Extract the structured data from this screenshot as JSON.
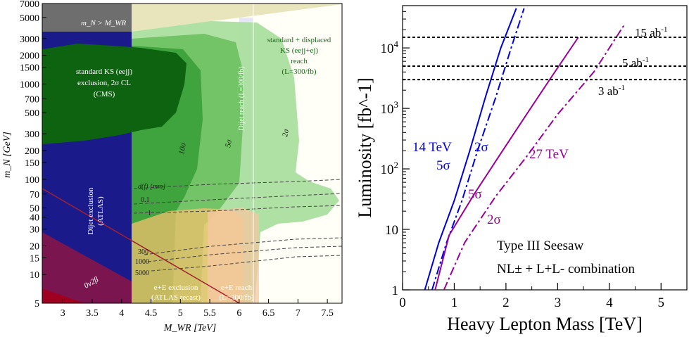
{
  "left_panel": {
    "xlabel": "M_WR [TeV]",
    "ylabel": "m_N [GeV]",
    "x_ticks": [
      "3",
      "3.5",
      "4",
      "4.5",
      "5",
      "5.5",
      "6",
      "6.5",
      "7",
      "7.5"
    ],
    "y_ticks": [
      "5",
      "10",
      "15",
      "20",
      "30",
      "40",
      "50",
      "70",
      "100",
      "150",
      "200",
      "300",
      "500",
      "700",
      "1000",
      "1500",
      "2000",
      "3000",
      "5000",
      "7000"
    ],
    "labels": {
      "mn_gt_mwr": "m_N > M_WR",
      "cms_line1": "standard KS (eejj)",
      "cms_line2": "exclusion, 2σ CL",
      "cms_line3": "(CMS)",
      "dijet_excl": "Dijet exclusion",
      "dijet_excl2": "(ATLAS)",
      "dijet_reach": "Dijet reach (L=300/fb)",
      "reach_line1": "standard + displaced",
      "reach_line2": "KS (eejj+ej)",
      "reach_line3": "reach",
      "reach_line4": "(L=300/fb)",
      "sig10": "10σ",
      "sig5": "5σ",
      "sig2": "2σ",
      "dn_label": "d(f) [mm]",
      "d01": "0.1",
      "d1": "1",
      "d300": "300",
      "d1000": "1000",
      "d5000": "5000",
      "onubb": "0ν2β",
      "ee_excl1": "e+E exclusion",
      "ee_excl2": "(ATLAS recast)",
      "ee_reach1": "e+E reach",
      "ee_reach2": "(L=300/fb)"
    }
  },
  "right_panel": {
    "xlabel": "Heavy Lepton Mass [TeV]",
    "ylabel": "Luminosity [fb^-1]",
    "x_ticks": [
      "0",
      "1",
      "2",
      "3",
      "4",
      "5"
    ],
    "y_ticks": [
      "1",
      "10",
      "10^2",
      "10^3",
      "10^4"
    ],
    "labels": {
      "lumi15": "15 ab",
      "lumi5": "5 ab",
      "lumi3": "3 ab",
      "e14": "14 TeV",
      "e27": "27 TeV",
      "s5a": "5σ",
      "s2a": "2σ",
      "s5b": "5σ",
      "s2b": "2σ",
      "title1": "Type III Seesaw",
      "title2": "NL± + L+L- combination"
    },
    "colors": {
      "tev14": "#0000dd",
      "tev27": "#990099"
    }
  },
  "chart_data": [
    {
      "type": "area",
      "xlabel": "M_WR [TeV]",
      "ylabel": "m_N [GeV]",
      "xlim": [
        2.65,
        7.75
      ],
      "ylim": [
        5,
        7000
      ],
      "yscale": "log",
      "series": [
        {
          "name": "standard KS (eejj) exclusion, 2σ CL (CMS)"
        },
        {
          "name": "Dijet exclusion (ATLAS)"
        },
        {
          "name": "Dijet reach (L=300/fb)"
        },
        {
          "name": "standard + displaced KS (eejj+ej) reach (L=300/fb)"
        },
        {
          "name": "e+E exclusion (ATLAS recast)"
        },
        {
          "name": "e+E reach (L=300/fb)"
        }
      ]
    },
    {
      "type": "line",
      "xlabel": "Heavy Lepton Mass [TeV]",
      "ylabel": "Luminosity [fb^-1]",
      "xlim": [
        0,
        5.5
      ],
      "ylim": [
        1,
        50000
      ],
      "yscale": "log",
      "series": [
        {
          "name": "14 TeV 5σ",
          "x": [
            0.43,
            0.7,
            1.0,
            1.3,
            1.6,
            1.9,
            2.2
          ],
          "y": [
            1,
            6,
            30,
            200,
            1500,
            10000,
            45000
          ]
        },
        {
          "name": "14 TeV 2σ",
          "x": [
            0.57,
            0.85,
            1.15,
            1.45,
            1.8,
            2.1,
            2.35
          ],
          "y": [
            1,
            6,
            30,
            200,
            1500,
            10000,
            45000
          ]
        },
        {
          "name": "27 TeV 5σ",
          "x": [
            0.63,
            0.9,
            1.4,
            1.9,
            2.4,
            2.9,
            3.4
          ],
          "y": [
            1,
            8,
            40,
            180,
            800,
            3500,
            15000
          ]
        },
        {
          "name": "27 TeV 2σ",
          "x": [
            0.8,
            1.2,
            1.8,
            2.4,
            3.0,
            3.7,
            4.3
          ],
          "y": [
            1,
            6,
            35,
            160,
            800,
            4000,
            25000
          ]
        },
        {
          "name": "15 ab",
          "x": [
            0,
            5.5
          ],
          "y": [
            15000,
            15000
          ]
        },
        {
          "name": "5 ab",
          "x": [
            0,
            5.5
          ],
          "y": [
            5000,
            5000
          ]
        },
        {
          "name": "3 ab",
          "x": [
            0,
            5.5
          ],
          "y": [
            3000,
            3000
          ]
        }
      ]
    }
  ]
}
